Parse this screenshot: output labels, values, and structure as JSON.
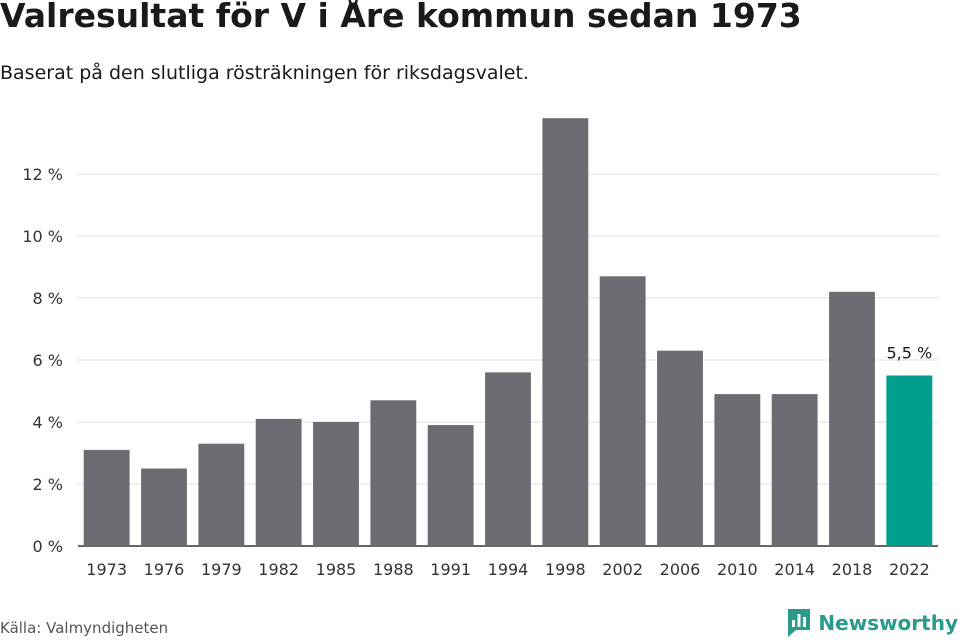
{
  "title": "Valresultat för V i Åre kommun sedan 1973",
  "subtitle": "Baserat på den slutliga rösträkningen för riksdagsvalet.",
  "source": "Källa: Valmyndigheten",
  "brand": {
    "name": "Newsworthy",
    "icon": "newsworthy-logo-icon",
    "color": "#2a9a8a"
  },
  "colors": {
    "bar": "#6d6c72",
    "highlight": "#009e8f",
    "grid": "#dddddd",
    "axis": "#333333"
  },
  "chart_data": {
    "type": "bar",
    "categories": [
      "1973",
      "1976",
      "1979",
      "1982",
      "1985",
      "1988",
      "1991",
      "1994",
      "1998",
      "2002",
      "2006",
      "2010",
      "2014",
      "2018",
      "2022"
    ],
    "values": [
      3.1,
      2.5,
      3.3,
      4.1,
      4.0,
      4.7,
      3.9,
      5.6,
      13.8,
      8.7,
      6.3,
      4.9,
      4.9,
      8.2,
      5.5
    ],
    "highlight_index": 14,
    "annotations": [
      {
        "index": 14,
        "text": "5,5 %"
      }
    ],
    "yticks": [
      0,
      2,
      4,
      6,
      8,
      10,
      12
    ],
    "ytick_labels": [
      "0 %",
      "2 %",
      "4 %",
      "6 %",
      "8 %",
      "10 %",
      "12 %"
    ],
    "ylim": [
      0,
      14
    ],
    "grid": true,
    "legend": "none",
    "xlabel": "",
    "ylabel": ""
  }
}
